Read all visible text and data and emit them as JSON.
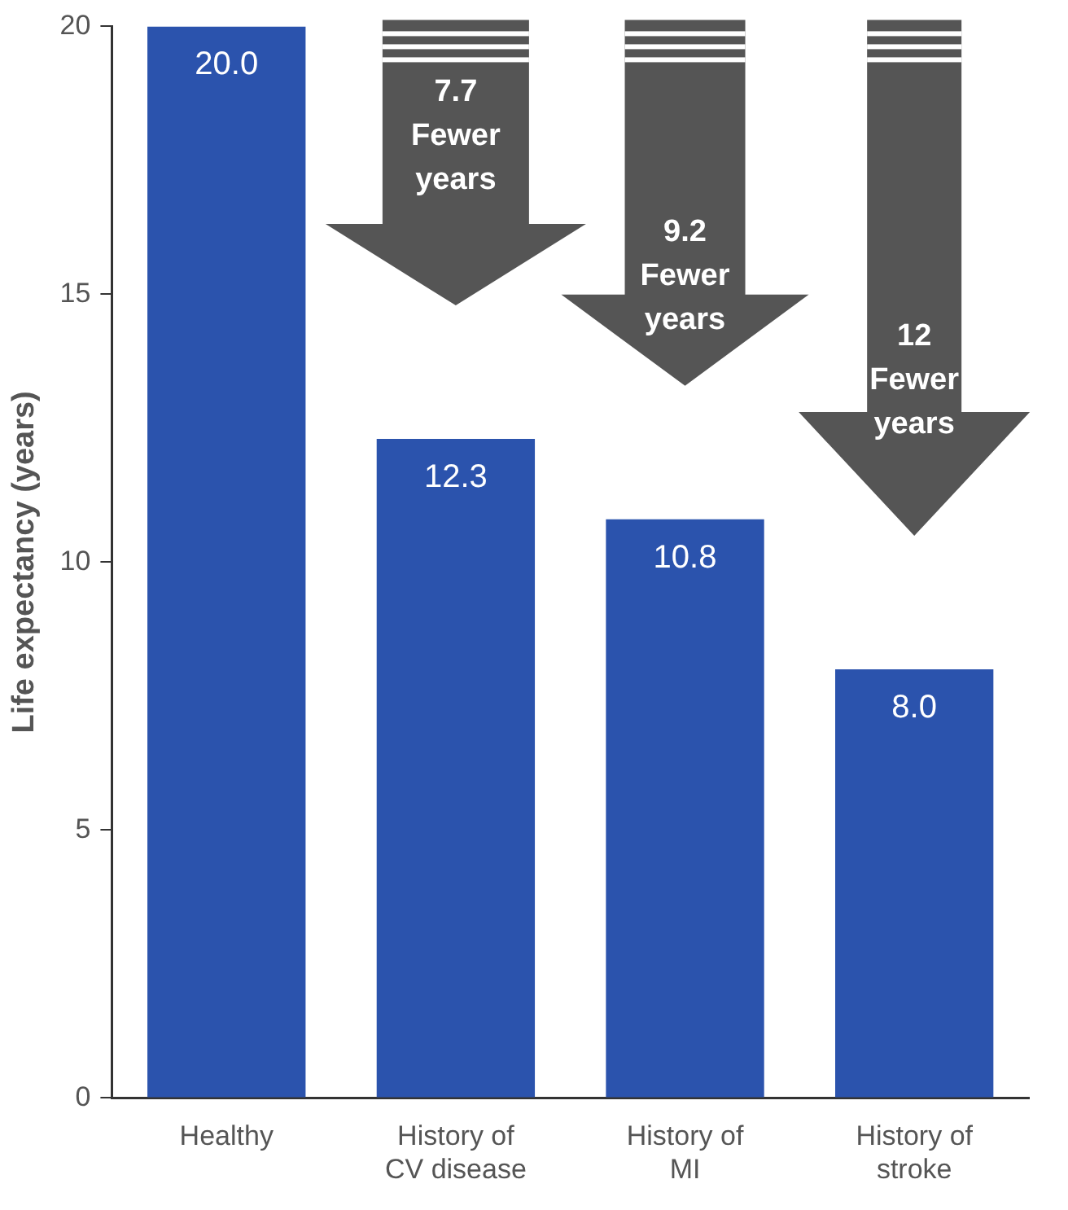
{
  "chart_data": {
    "type": "bar",
    "ylabel": "Life expectancy (years)",
    "categories": [
      "Healthy",
      "History of CV disease",
      "History of MI",
      "History of stroke"
    ],
    "values": [
      20.0,
      12.3,
      10.8,
      8.0
    ],
    "value_labels": [
      "20.0",
      "12.3",
      "10.8",
      "8.0"
    ],
    "color": "#2b53ad",
    "ylim": [
      0,
      20
    ],
    "yticks": [
      0,
      5,
      10,
      15,
      20
    ],
    "grid": false,
    "legend": false,
    "annotations": [
      "7.7 Fewer years",
      "9.2 Fewer years",
      "12 Fewer years"
    ]
  }
}
